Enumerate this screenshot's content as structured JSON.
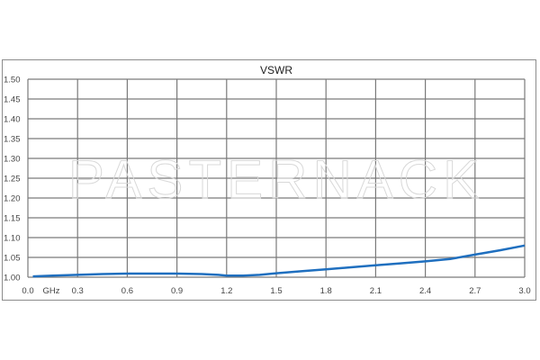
{
  "chart_data": {
    "type": "line",
    "title": "VSWR",
    "xlabel": "GHz",
    "ylabel": "",
    "xlim": [
      0.0,
      3.0
    ],
    "ylim": [
      1.0,
      1.5
    ],
    "x_ticks": [
      "0.0",
      "0.3",
      "0.6",
      "0.9",
      "1.2",
      "1.5",
      "1.8",
      "2.1",
      "2.4",
      "2.7",
      "3.0"
    ],
    "y_ticks": [
      "1.00",
      "1.05",
      "1.10",
      "1.15",
      "1.20",
      "1.25",
      "1.30",
      "1.35",
      "1.40",
      "1.45",
      "1.50"
    ],
    "grid": true,
    "legend": "none",
    "watermark": "PASTERNACK",
    "series": [
      {
        "color": "#1f6fbf",
        "x": [
          0.03,
          0.15,
          0.3,
          0.45,
          0.6,
          0.75,
          0.9,
          1.05,
          1.15,
          1.2,
          1.3,
          1.4,
          1.5,
          1.65,
          1.8,
          1.95,
          2.1,
          2.25,
          2.4,
          2.55,
          2.7,
          2.85,
          3.0
        ],
        "y": [
          1.002,
          1.004,
          1.006,
          1.008,
          1.009,
          1.009,
          1.009,
          1.008,
          1.006,
          1.004,
          1.004,
          1.006,
          1.01,
          1.015,
          1.02,
          1.025,
          1.03,
          1.035,
          1.04,
          1.046,
          1.057,
          1.068,
          1.08
        ]
      }
    ]
  }
}
